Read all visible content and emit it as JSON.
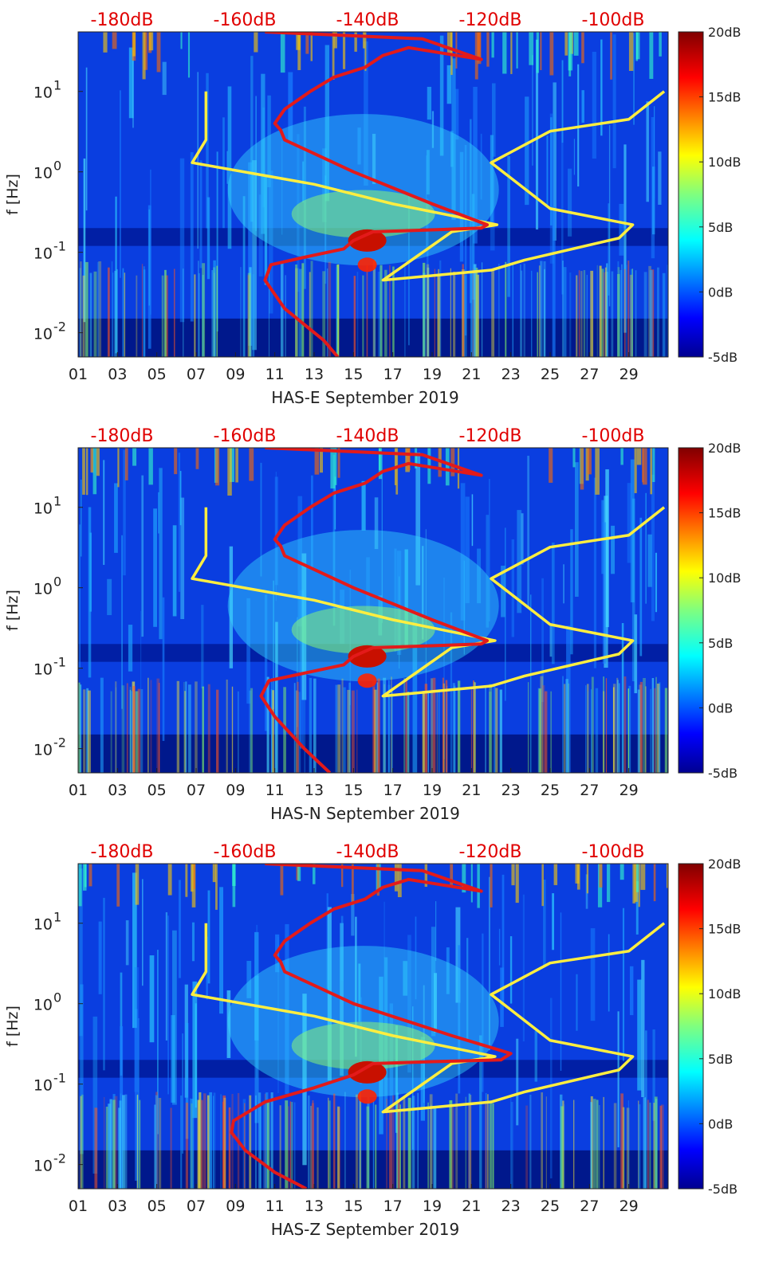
{
  "chart_data": [
    {
      "type": "heatmap",
      "xlabel": "HAS-E September 2019",
      "ylabel": "f [Hz]",
      "x_ticks": [
        "01",
        "03",
        "05",
        "07",
        "09",
        "11",
        "13",
        "15",
        "17",
        "19",
        "21",
        "23",
        "25",
        "27",
        "29"
      ],
      "y_ticks": [
        {
          "base": "10",
          "exp": "1"
        },
        {
          "base": "10",
          "exp": "0"
        },
        {
          "base": "10",
          "exp": "-1"
        },
        {
          "base": "10",
          "exp": "-2"
        }
      ],
      "y_scale": "log",
      "top_axis_ticks": [
        "-180dB",
        "-160dB",
        "-140dB",
        "-120dB",
        "-100dB"
      ],
      "colorbar": {
        "ticks": [
          "20dB",
          "15dB",
          "10dB",
          "5dB",
          "0dB",
          "-5dB"
        ],
        "range": [
          -5,
          20
        ],
        "colormap": "jet"
      },
      "yellow_line": {
        "day": [
          7.5,
          7.5,
          6.8,
          13,
          17,
          22.3,
          20,
          16.5,
          22,
          23.7,
          28.5,
          29.2,
          25,
          22,
          25,
          29,
          30.8
        ],
        "f_hz": [
          10,
          2.5,
          1.3,
          0.7,
          0.4,
          0.22,
          0.18,
          0.045,
          0.06,
          0.08,
          0.15,
          0.22,
          0.35,
          1.3,
          3.2,
          4.5,
          10
        ]
      },
      "red_line": {
        "day": [
          14.2,
          13.5,
          11.5,
          10.5,
          10.8,
          12.8,
          14.5,
          15,
          16,
          19,
          21.5,
          21.8,
          19,
          15,
          11.5,
          11.3,
          11,
          11.5,
          12.8,
          14,
          15.6,
          16.5,
          17.8,
          21.5,
          18.5,
          10.5
        ],
        "f_hz": [
          0.005,
          0.008,
          0.02,
          0.045,
          0.07,
          0.09,
          0.11,
          0.14,
          0.18,
          0.19,
          0.2,
          0.22,
          0.4,
          1,
          2.5,
          3.3,
          4,
          6,
          10,
          15,
          20,
          28,
          35,
          25,
          45,
          55
        ]
      }
    },
    {
      "type": "heatmap",
      "xlabel": "HAS-N September 2019",
      "ylabel": "f [Hz]",
      "x_ticks": [
        "01",
        "03",
        "05",
        "07",
        "09",
        "11",
        "13",
        "15",
        "17",
        "19",
        "21",
        "23",
        "25",
        "27",
        "29"
      ],
      "y_ticks": [
        {
          "base": "10",
          "exp": "1"
        },
        {
          "base": "10",
          "exp": "0"
        },
        {
          "base": "10",
          "exp": "-1"
        },
        {
          "base": "10",
          "exp": "-2"
        }
      ],
      "y_scale": "log",
      "top_axis_ticks": [
        "-180dB",
        "-160dB",
        "-140dB",
        "-120dB",
        "-100dB"
      ],
      "colorbar": {
        "ticks": [
          "20dB",
          "15dB",
          "10dB",
          "5dB",
          "0dB",
          "-5dB"
        ],
        "range": [
          -5,
          20
        ],
        "colormap": "jet"
      },
      "yellow_line": {
        "day": [
          7.5,
          7.5,
          6.8,
          13,
          17,
          22.2,
          20,
          16.5,
          22,
          23.7,
          28.5,
          29.2,
          25,
          22,
          25,
          29,
          30.8
        ],
        "f_hz": [
          10,
          2.5,
          1.3,
          0.7,
          0.4,
          0.22,
          0.18,
          0.045,
          0.06,
          0.08,
          0.15,
          0.22,
          0.35,
          1.3,
          3.2,
          4.5,
          10
        ]
      },
      "red_line": {
        "day": [
          13.8,
          12.5,
          11,
          10.3,
          10.7,
          12.8,
          14.5,
          15,
          16,
          19,
          21.5,
          21.8,
          19,
          15,
          11.5,
          11.3,
          11,
          11.5,
          12.8,
          14,
          15.6,
          16.5,
          17.8,
          21.5,
          18.5,
          10.5
        ],
        "f_hz": [
          0.005,
          0.01,
          0.025,
          0.045,
          0.07,
          0.09,
          0.11,
          0.14,
          0.18,
          0.19,
          0.2,
          0.22,
          0.4,
          1,
          2.5,
          3.3,
          4,
          6,
          10,
          15,
          20,
          28,
          35,
          25,
          45,
          55
        ]
      }
    },
    {
      "type": "heatmap",
      "xlabel": "HAS-Z September 2019",
      "ylabel": "f [Hz]",
      "x_ticks": [
        "01",
        "03",
        "05",
        "07",
        "09",
        "11",
        "13",
        "15",
        "17",
        "19",
        "21",
        "23",
        "25",
        "27",
        "29"
      ],
      "y_ticks": [
        {
          "base": "10",
          "exp": "1"
        },
        {
          "base": "10",
          "exp": "0"
        },
        {
          "base": "10",
          "exp": "-1"
        },
        {
          "base": "10",
          "exp": "-2"
        }
      ],
      "y_scale": "log",
      "top_axis_ticks": [
        "-180dB",
        "-160dB",
        "-140dB",
        "-120dB",
        "-100dB"
      ],
      "colorbar": {
        "ticks": [
          "20dB",
          "15dB",
          "10dB",
          "5dB",
          "0dB",
          "-5dB"
        ],
        "range": [
          -5,
          20
        ],
        "colormap": "jet"
      },
      "yellow_line": {
        "day": [
          7.5,
          7.5,
          6.8,
          13,
          17,
          22.2,
          20,
          16.5,
          22,
          23.7,
          28.5,
          29.2,
          25,
          22,
          25,
          29,
          30.8
        ],
        "f_hz": [
          10,
          2.5,
          1.3,
          0.7,
          0.4,
          0.22,
          0.18,
          0.045,
          0.06,
          0.08,
          0.15,
          0.22,
          0.35,
          1.3,
          3.2,
          4.5,
          10
        ]
      },
      "red_line": {
        "day": [
          12.6,
          11,
          9.5,
          8.8,
          8.9,
          10.5,
          13,
          15,
          16,
          19,
          22.5,
          23,
          20,
          15,
          11.5,
          11.3,
          11,
          11.5,
          12.8,
          14,
          15.6,
          16.5,
          17.8,
          21.5,
          18.5,
          10.5
        ],
        "f_hz": [
          0.005,
          0.008,
          0.015,
          0.025,
          0.035,
          0.06,
          0.09,
          0.13,
          0.18,
          0.19,
          0.2,
          0.24,
          0.4,
          1,
          2.5,
          3.3,
          4,
          6,
          10,
          15,
          20,
          28,
          35,
          25,
          45,
          55
        ]
      }
    }
  ]
}
